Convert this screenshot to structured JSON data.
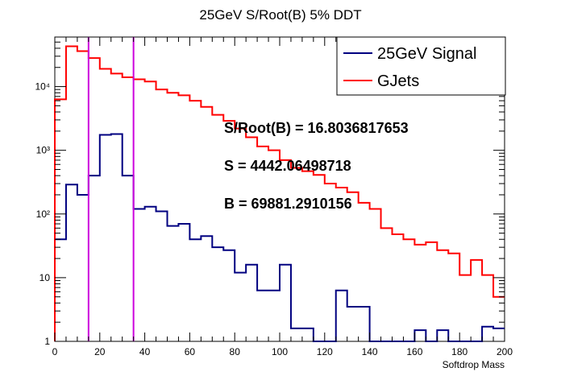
{
  "chart_data": {
    "type": "histogram",
    "title": "25GeV S/Root(B) 5% DDT",
    "xlabel": "Softdrop Mass",
    "ylabel": "",
    "xlim": [
      0,
      200
    ],
    "ylim": [
      1,
      60000
    ],
    "y_scale": "log",
    "bin_width": 5,
    "x_ticks": [
      0,
      20,
      40,
      60,
      80,
      100,
      120,
      140,
      160,
      180,
      200
    ],
    "x_tick_labels": [
      "0",
      "20",
      "40",
      "60",
      "80",
      "100",
      "120",
      "140",
      "160",
      "180",
      "200"
    ],
    "y_ticks": [
      1,
      10,
      100,
      1000,
      10000
    ],
    "y_tick_labels": [
      "1",
      "10",
      "10²",
      "10³",
      "10⁴"
    ],
    "legend_position": "top-right",
    "series": [
      {
        "name": "25GeV Signal",
        "color": "#000080",
        "values": [
          40,
          290,
          200,
          400,
          1750,
          1800,
          400,
          120,
          130,
          110,
          65,
          70,
          40,
          45,
          30,
          27,
          12,
          16,
          6.3,
          6.3,
          16,
          1.6,
          1.6,
          1,
          1,
          6.3,
          3.5,
          3.5,
          1,
          1,
          1,
          1,
          1.5,
          1,
          1.5,
          1,
          1,
          1,
          1.7,
          1.6
        ]
      },
      {
        "name": "GJets",
        "color": "#ff0000",
        "values": [
          6300,
          43000,
          36000,
          28000,
          19000,
          16000,
          14000,
          13000,
          12000,
          9000,
          8000,
          7300,
          6000,
          4800,
          3600,
          2900,
          2200,
          1600,
          1150,
          1000,
          700,
          530,
          470,
          410,
          300,
          260,
          220,
          150,
          120,
          60,
          48,
          40,
          33,
          36,
          27,
          24,
          11,
          19,
          11,
          5
        ]
      }
    ],
    "reference_lines_x": [
      15,
      35
    ],
    "reference_line_color": "#cc00dd",
    "annotations": [
      "S/Root(B) = 16.8036817653",
      "S = 4442.06498718",
      "B = 69881.2910156"
    ]
  }
}
